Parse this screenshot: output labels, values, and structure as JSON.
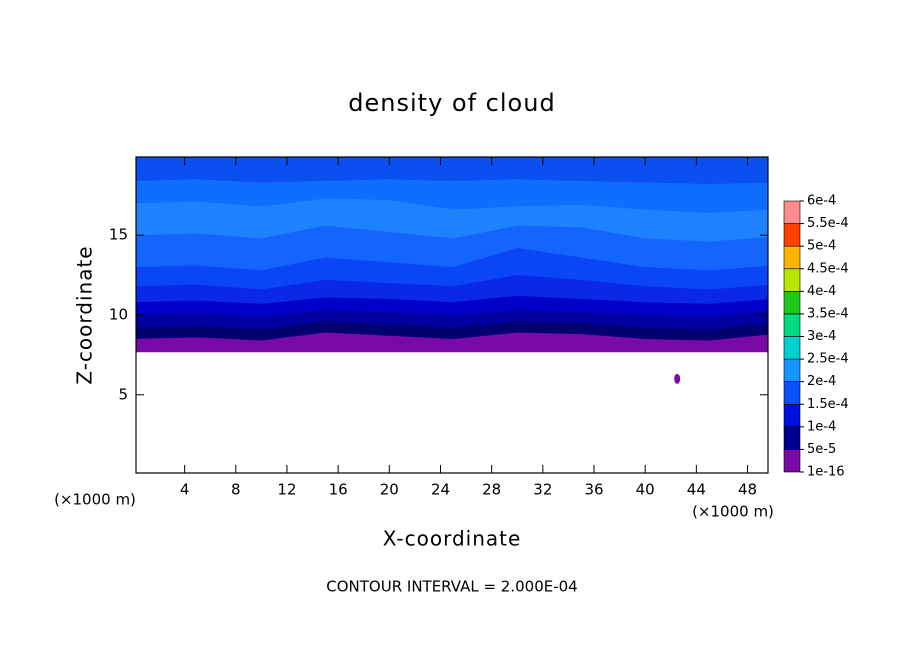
{
  "chart_data": {
    "type": "contour",
    "title": "density of cloud",
    "xlabel": "X-coordinate",
    "ylabel": "Z-coordinate",
    "x_unit_label": "(×1000 m)",
    "z_unit_label": "(×1000 m)",
    "annotation": "CONTOUR INTERVAL = 2.000E-04",
    "xlim": [
      0.2,
      49.6
    ],
    "ylim": [
      0.1,
      19.9
    ],
    "xticks": [
      4,
      8,
      12,
      16,
      20,
      24,
      28,
      32,
      36,
      40,
      44,
      48
    ],
    "yticks": [
      5,
      10,
      15
    ],
    "x": [
      0,
      5,
      10,
      15,
      20,
      25,
      30,
      35,
      40,
      45,
      50
    ],
    "cloud_base": [
      7.7,
      7.7,
      7.7,
      7.7,
      7.7,
      7.7,
      7.7,
      7.7,
      7.7,
      7.7,
      7.7
    ],
    "bands": [
      {
        "color": "#7a0aa8",
        "top": [
          8.5,
          8.6,
          8.4,
          8.9,
          8.7,
          8.5,
          8.9,
          8.8,
          8.5,
          8.4,
          8.8
        ]
      },
      {
        "color": "#000070",
        "top": [
          9.2,
          9.3,
          9.1,
          9.6,
          9.4,
          9.2,
          9.6,
          9.5,
          9.2,
          9.1,
          9.5
        ]
      },
      {
        "color": "#0000a0",
        "top": [
          10.0,
          10.1,
          9.9,
          10.3,
          10.2,
          10.0,
          10.3,
          10.2,
          10.0,
          9.9,
          10.3
        ]
      },
      {
        "color": "#0000c8",
        "top": [
          10.8,
          10.9,
          10.7,
          11.1,
          11.0,
          10.8,
          11.2,
          11.0,
          10.8,
          10.7,
          11.0
        ]
      },
      {
        "color": "#0a28e6",
        "top": [
          11.8,
          11.9,
          11.6,
          12.2,
          12.0,
          11.8,
          12.5,
          12.2,
          11.8,
          11.6,
          11.9
        ]
      },
      {
        "color": "#0a46f5",
        "top": [
          13.0,
          13.1,
          12.8,
          13.6,
          13.3,
          13.0,
          14.2,
          13.6,
          13.0,
          12.8,
          13.1
        ]
      },
      {
        "color": "#1464ff",
        "top": [
          15.0,
          15.1,
          14.8,
          15.6,
          15.2,
          14.8,
          15.6,
          15.5,
          14.8,
          14.6,
          14.9
        ]
      },
      {
        "color": "#1e82ff",
        "top": [
          17.0,
          17.1,
          16.8,
          17.3,
          17.2,
          16.6,
          16.8,
          16.9,
          16.6,
          16.4,
          16.6
        ]
      },
      {
        "color": "#0f6eff",
        "top": [
          18.4,
          18.5,
          18.3,
          18.4,
          18.5,
          18.4,
          18.5,
          18.4,
          18.3,
          18.2,
          18.3
        ]
      },
      {
        "color": "#0a50f0",
        "top": [
          19.9,
          19.9,
          19.9,
          19.9,
          19.9,
          19.9,
          19.9,
          19.9,
          19.9,
          19.9,
          19.9
        ]
      }
    ],
    "blobs": [
      {
        "x": 42.5,
        "z": 6.0,
        "color": "#7a0aa8"
      }
    ],
    "colorbar": {
      "levels": [
        1e-16,
        {
          "value": 5e-05,
          "label": "5e-5"
        },
        {
          "value": 0.0001,
          "label": "1e-4"
        },
        {
          "value": 0.00015,
          "label": "1.5e-4"
        },
        {
          "value": 0.0002,
          "label": "2e-4"
        },
        {
          "value": 0.00025,
          "label": "2.5e-4"
        },
        {
          "value": 0.0003,
          "label": "3e-4"
        },
        {
          "value": 0.00035,
          "label": "3.5e-4"
        },
        {
          "value": 0.0004,
          "label": "4e-4"
        },
        {
          "value": 0.00045,
          "label": "4.5e-4"
        },
        {
          "value": 0.0005,
          "label": "5e-4"
        },
        {
          "value": 0.00055,
          "label": "5.5e-4"
        },
        {
          "value": 0.0006,
          "label": "6e-4"
        }
      ],
      "colors": [
        "#7a0aa8",
        "#000090",
        "#0010e0",
        "#0a50ff",
        "#1496ff",
        "#00d2d2",
        "#00dc82",
        "#1ec81e",
        "#b4e600",
        "#ffb400",
        "#ff4000",
        "#ff8c8c"
      ]
    }
  }
}
